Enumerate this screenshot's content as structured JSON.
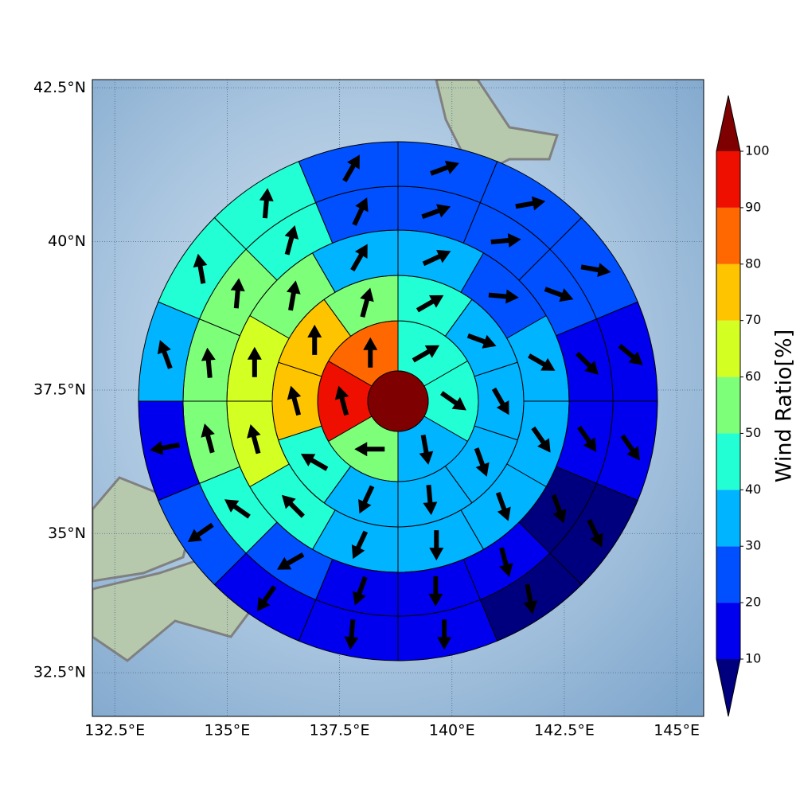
{
  "chart_data": {
    "type": "polar_grid",
    "xlim": [
      132.0,
      145.6
    ],
    "xticks": [
      {
        "value": 132.5,
        "label": "132.5°E"
      },
      {
        "value": 135,
        "label": "135°E"
      },
      {
        "value": 137.5,
        "label": "137.5°E"
      },
      {
        "value": 140,
        "label": "140°E"
      },
      {
        "value": 142.5,
        "label": "142.5°E"
      },
      {
        "value": 145,
        "label": "145°E"
      }
    ],
    "ylim": [
      31.7,
      42.63
    ],
    "yticks": [
      {
        "value": 32.5,
        "label": "32.5°N"
      },
      {
        "value": 35,
        "label": "35°N"
      },
      {
        "value": 37.5,
        "label": "37.5°N"
      },
      {
        "value": 40,
        "label": "40°N"
      },
      {
        "value": 42.5,
        "label": "42.5°N"
      }
    ],
    "grid": true,
    "center_value": 105,
    "rings": [
      {
        "values": [
          45,
          45,
          35,
          55,
          95,
          85
        ],
        "directions": [
          60,
          125,
          170,
          270,
          345,
          0
        ]
      },
      {
        "values": [
          45,
          35,
          35,
          35,
          35,
          35,
          45,
          75,
          75,
          55
        ],
        "directions": [
          60,
          110,
          150,
          160,
          175,
          205,
          300,
          345,
          0,
          15
        ]
      },
      {
        "values": [
          35,
          25,
          35,
          35,
          35,
          35,
          35,
          45,
          65,
          65,
          55,
          35
        ],
        "directions": [
          65,
          95,
          120,
          145,
          160,
          180,
          205,
          315,
          345,
          0,
          10,
          30
        ]
      },
      {
        "values": [
          25,
          25,
          25,
          15,
          15,
          5,
          15,
          15,
          15,
          25,
          45,
          55,
          55,
          55,
          45,
          25
        ],
        "directions": [
          70,
          85,
          110,
          135,
          145,
          160,
          165,
          180,
          200,
          240,
          305,
          345,
          355,
          5,
          15,
          25
        ]
      },
      {
        "values": [
          25,
          25,
          25,
          15,
          15,
          5,
          5,
          15,
          15,
          15,
          25,
          15,
          35,
          45,
          45,
          25
        ],
        "directions": [
          70,
          80,
          100,
          130,
          145,
          155,
          170,
          180,
          185,
          215,
          235,
          260,
          340,
          350,
          5,
          30
        ]
      }
    ],
    "colorbar": {
      "label": "Wind Ratio[%]",
      "levels": [
        10,
        20,
        30,
        40,
        50,
        60,
        70,
        80,
        90,
        100
      ],
      "colors": [
        "#00007f",
        "#0000ee",
        "#0050ff",
        "#00b4ff",
        "#22ffd4",
        "#7dff7a",
        "#d4ff22",
        "#ffc400",
        "#ff6800",
        "#ee0f00",
        "#7f0000"
      ],
      "extend": "both"
    }
  }
}
